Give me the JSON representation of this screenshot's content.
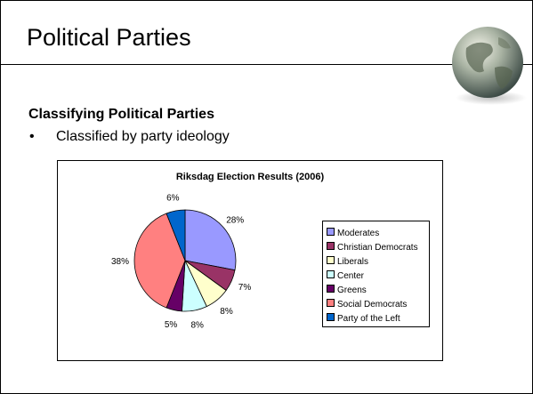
{
  "slide": {
    "title": "Political Parties",
    "subheading": "Classifying Political Parties",
    "bullets": [
      {
        "symbol": "•",
        "text": "Classified by party ideology"
      }
    ]
  },
  "chart_data": {
    "type": "pie",
    "title": "Riksdag Election Results (2006)",
    "legend_position": "right",
    "slices": [
      {
        "label": "Moderates",
        "value": 28,
        "display": "28%",
        "color": "#9999ff"
      },
      {
        "label": "Christian Democrats",
        "value": 7,
        "display": "7%",
        "color": "#993366"
      },
      {
        "label": "Liberals",
        "value": 8,
        "display": "8%",
        "color": "#ffffcc"
      },
      {
        "label": "Center",
        "value": 8,
        "display": "8%",
        "color": "#ccffff"
      },
      {
        "label": "Greens",
        "value": 5,
        "display": "5%",
        "color": "#660066"
      },
      {
        "label": "Social Democrats",
        "value": 38,
        "display": "38%",
        "color": "#ff8080"
      },
      {
        "label": "Party of the Left",
        "value": 6,
        "display": "6%",
        "color": "#0066cc"
      }
    ]
  }
}
